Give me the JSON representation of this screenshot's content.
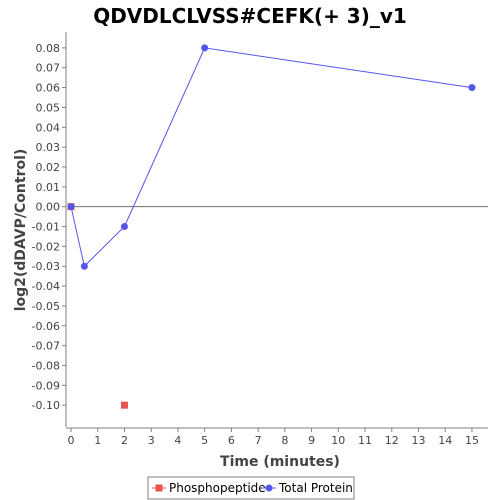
{
  "chart_data": {
    "type": "scatter",
    "title": "QDVDLCLVSS#CEFK(+ 3)_v1",
    "xlabel": "Time (minutes)",
    "ylabel": "log2(dDAVP/Control)",
    "xlim": [
      0,
      15.6
    ],
    "ylim": [
      -0.111,
      0.088
    ],
    "x_ticks": [
      0,
      1,
      2,
      3,
      4,
      5,
      6,
      7,
      8,
      9,
      10,
      11,
      12,
      13,
      14,
      15
    ],
    "y_ticks": [
      0.08,
      0.07,
      0.06,
      0.05,
      0.04,
      0.03,
      0.02,
      0.01,
      0.0,
      -0.01,
      -0.02,
      -0.03,
      -0.04,
      -0.05,
      -0.06,
      -0.07,
      -0.08,
      -0.09,
      -0.1
    ],
    "y_tick_labels": [
      "0.08",
      "0.07",
      "0.06",
      "0.05",
      "0.04",
      "0.03",
      "0.02",
      "0.01",
      "0.00",
      "-0.01",
      "-0.02",
      "-0.03",
      "-0.04",
      "-0.05",
      "-0.06",
      "-0.07",
      "-0.08",
      "-0.09",
      "-0.10"
    ],
    "zero_line": true,
    "grid": false,
    "legend_position": "bottom-center",
    "series": [
      {
        "name": "Phosphopeptide",
        "color": "#e8534f",
        "marker": "square",
        "connected": false,
        "x": [
          0,
          2
        ],
        "y": [
          0.0,
          -0.1
        ]
      },
      {
        "name": "Total Protein",
        "color": "#5555ee",
        "marker": "circle",
        "connected": true,
        "x": [
          0,
          0.5,
          2,
          5,
          15
        ],
        "y": [
          0.0,
          -0.03,
          -0.01,
          0.08,
          0.06
        ]
      }
    ]
  }
}
